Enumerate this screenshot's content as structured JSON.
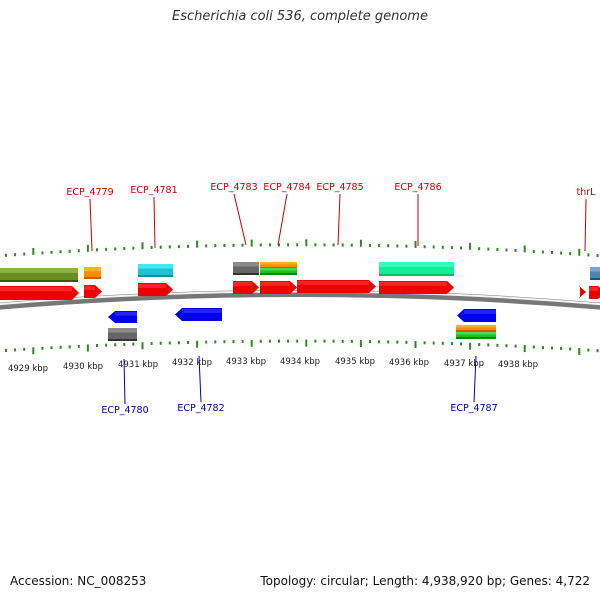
{
  "title": "Escherichia coli 536, complete genome",
  "footer": {
    "accession": "Accession: NC_008253",
    "summary": "Topology: circular; Length: 4,938,920 bp; Genes: 4,722"
  },
  "colors": {
    "backbone": "#8a8a8a",
    "tick": "#2d8a1e",
    "label_forward": "#cc0000",
    "label_reverse": "#0000bb",
    "gene_forward": "#ee0000",
    "gene_reverse": "#0000ee"
  },
  "scale": {
    "unit": "kbp",
    "labels": [
      "4929 kbp",
      "4930 kbp",
      "4931 kbp",
      "4932 kbp",
      "4933 kbp",
      "4934 kbp",
      "4935 kbp",
      "4936 kbp",
      "4937 kbp",
      "4938 kbp"
    ]
  },
  "forward_labels": [
    "ECP_4779",
    "ECP_4781",
    "ECP_4783",
    "ECP_4784",
    "ECP_4785",
    "ECP_4786",
    "thrL"
  ],
  "reverse_labels": [
    "ECP_4780",
    "ECP_4782",
    "ECP_4787"
  ],
  "feature_colors": {
    "olive": "#6b8e23",
    "orange": "#ff8c00",
    "cyan": "#20c4d0",
    "gray": "#666666",
    "green": "#22bb22",
    "mint": "#11ee99",
    "steel": "#4a86b0"
  }
}
